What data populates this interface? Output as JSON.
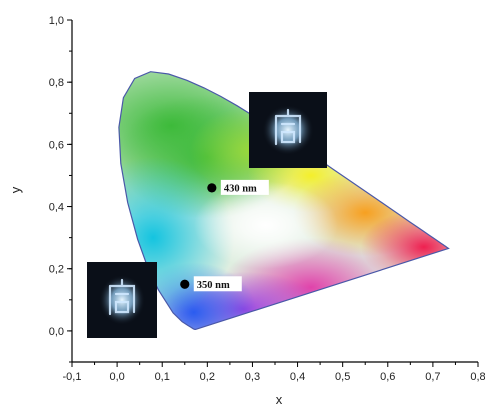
{
  "chart_data": {
    "type": "scatter",
    "subtype": "CIE 1931 chromaticity diagram",
    "xlabel": "x",
    "ylabel": "y",
    "xlim": [
      -0.1,
      0.8
    ],
    "ylim": [
      -0.1,
      1.0
    ],
    "x_ticks": [
      "-0,1",
      "0,0",
      "0,1",
      "0,2",
      "0,3",
      "0,4",
      "0,5",
      "0,6",
      "0,7",
      "0,8"
    ],
    "y_ticks": [
      "0,0",
      "0,2",
      "0,4",
      "0,6",
      "0,8",
      "1,0"
    ],
    "grid": false,
    "points": [
      {
        "x": 0.21,
        "y": 0.46,
        "label": "430 nm",
        "color": "#000000"
      },
      {
        "x": 0.15,
        "y": 0.15,
        "label": "350 nm",
        "color": "#000000"
      }
    ],
    "insets": [
      {
        "caption": "",
        "near": "430 nm"
      },
      {
        "caption": "",
        "near": "350 nm"
      }
    ],
    "gamut_locus": [
      [
        0.1741,
        0.005
      ],
      [
        0.1736,
        0.005
      ],
      [
        0.1726,
        0.0048
      ],
      [
        0.1714,
        0.0051
      ],
      [
        0.1689,
        0.0069
      ],
      [
        0.1644,
        0.0109
      ],
      [
        0.1566,
        0.0177
      ],
      [
        0.144,
        0.0297
      ],
      [
        0.1241,
        0.0578
      ],
      [
        0.0913,
        0.1327
      ],
      [
        0.0687,
        0.2007
      ],
      [
        0.0454,
        0.295
      ],
      [
        0.0235,
        0.4127
      ],
      [
        0.0082,
        0.5384
      ],
      [
        0.0039,
        0.6548
      ],
      [
        0.0139,
        0.7502
      ],
      [
        0.0389,
        0.812
      ],
      [
        0.0743,
        0.8338
      ],
      [
        0.1142,
        0.8262
      ],
      [
        0.1547,
        0.8059
      ],
      [
        0.1929,
        0.7816
      ],
      [
        0.2296,
        0.7543
      ],
      [
        0.2658,
        0.7243
      ],
      [
        0.3016,
        0.6923
      ],
      [
        0.3373,
        0.6589
      ],
      [
        0.3731,
        0.6245
      ],
      [
        0.4087,
        0.5896
      ],
      [
        0.4441,
        0.5547
      ],
      [
        0.4788,
        0.5202
      ],
      [
        0.5125,
        0.4866
      ],
      [
        0.5448,
        0.4544
      ],
      [
        0.5752,
        0.4242
      ],
      [
        0.6029,
        0.3965
      ],
      [
        0.627,
        0.3725
      ],
      [
        0.6482,
        0.3514
      ],
      [
        0.6658,
        0.334
      ],
      [
        0.6801,
        0.3197
      ],
      [
        0.6915,
        0.3083
      ],
      [
        0.7006,
        0.2993
      ],
      [
        0.7079,
        0.292
      ],
      [
        0.714,
        0.2859
      ],
      [
        0.719,
        0.2809
      ],
      [
        0.723,
        0.277
      ],
      [
        0.726,
        0.274
      ],
      [
        0.7283,
        0.2717
      ],
      [
        0.73,
        0.27
      ],
      [
        0.7347,
        0.2653
      ]
    ],
    "colors": {
      "axis": "#000000",
      "locus_edge": "#4a58a8",
      "white_point": "#ffffff",
      "inset_background": "#0a0f18",
      "inset_glow": "#cfe8ff"
    }
  }
}
